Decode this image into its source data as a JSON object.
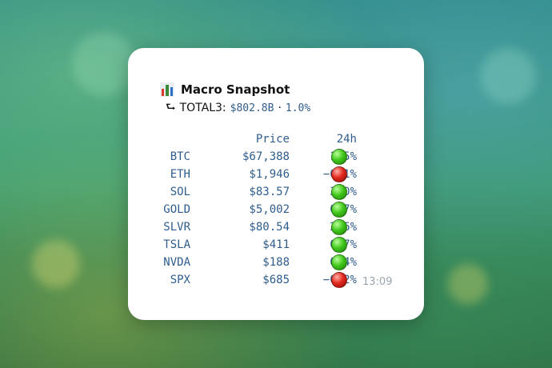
{
  "message": {
    "title_emoji": "bar-chart-icon",
    "title": "Macro Snapshot",
    "total_prefix": "⮑",
    "total_label": "TOTAL3:",
    "total_value": "$802.8B",
    "total_sep": "·",
    "total_change": "1.0%",
    "timestamp": "13:09"
  },
  "table": {
    "headers": {
      "price": "Price",
      "change": "24h"
    },
    "rows": [
      {
        "symbol": "BTC",
        "price": "$67,388",
        "change": "1.5%",
        "indicator": "green"
      },
      {
        "symbol": "ETH",
        "price": "$1,946",
        "change": "−0.1%",
        "indicator": "red"
      },
      {
        "symbol": "SOL",
        "price": "$83.57",
        "change": "3.0%",
        "indicator": "green"
      },
      {
        "symbol": "GOLD",
        "price": "$5,002",
        "change": "0.7%",
        "indicator": "green"
      },
      {
        "symbol": "SLVR",
        "price": "$80.54",
        "change": "2.6%",
        "indicator": "green"
      },
      {
        "symbol": "TSLA",
        "price": "$411",
        "change": "0.7%",
        "indicator": "green"
      },
      {
        "symbol": "NVDA",
        "price": "$188",
        "change": "0.4%",
        "indicator": "green"
      },
      {
        "symbol": "SPX",
        "price": "$685",
        "change": "−0.2%",
        "indicator": "red"
      }
    ]
  },
  "colors": {
    "value_text": "#2f5d8c",
    "up": "#42c81c",
    "down": "#e3281f",
    "timestamp": "#9aa4ad"
  }
}
